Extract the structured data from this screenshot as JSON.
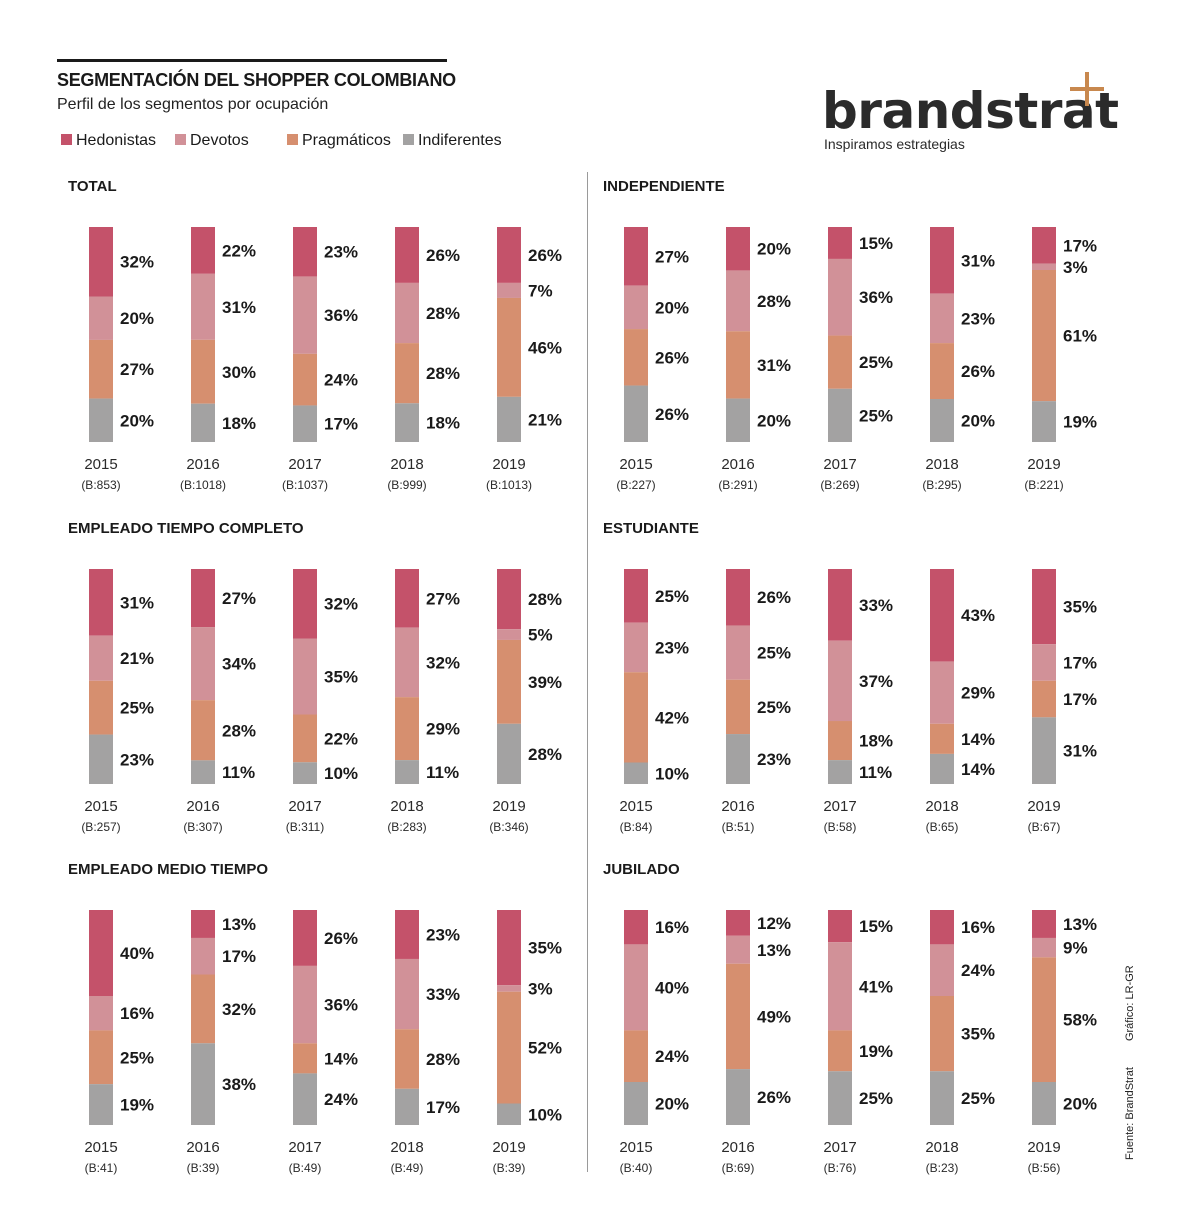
{
  "header": {
    "title": "SEGMENTACIÓN DEL SHOPPER COLOMBIANO",
    "subtitle": "Perfil de los segmentos por ocupación"
  },
  "legend": [
    {
      "label": "Hedonistas",
      "color": "#c4526a"
    },
    {
      "label": "Devotos",
      "color": "#d19198"
    },
    {
      "label": "Pragmáticos",
      "color": "#d68f6f"
    },
    {
      "label": "Indiferentes",
      "color": "#a3a2a2"
    }
  ],
  "logo": {
    "name": "brandstrat",
    "tagline": "Inspiramos estrategias",
    "accent": "#c8884e"
  },
  "credits": {
    "source": "Fuente: BrandStrat",
    "graphic": "Gráfico: LR-GR"
  },
  "chart_data": [
    {
      "type": "bar",
      "stacked": true,
      "title": "TOTAL",
      "categories": [
        "2015",
        "2016",
        "2017",
        "2018",
        "2019"
      ],
      "bases": [
        "(B:853)",
        "(B:1018)",
        "(B:1037)",
        "(B:999)",
        "(B:1013)"
      ],
      "series": [
        {
          "name": "Hedonistas",
          "values": [
            32,
            22,
            23,
            26,
            26
          ]
        },
        {
          "name": "Devotos",
          "values": [
            20,
            31,
            36,
            28,
            7
          ]
        },
        {
          "name": "Pragmáticos",
          "values": [
            27,
            30,
            24,
            28,
            46
          ]
        },
        {
          "name": "Indiferentes",
          "values": [
            20,
            18,
            17,
            18,
            21
          ]
        }
      ]
    },
    {
      "type": "bar",
      "stacked": true,
      "title": "INDEPENDIENTE",
      "categories": [
        "2015",
        "2016",
        "2017",
        "2018",
        "2019"
      ],
      "bases": [
        "(B:227)",
        "(B:291)",
        "(B:269)",
        "(B:295)",
        "(B:221)"
      ],
      "series": [
        {
          "name": "Hedonistas",
          "values": [
            27,
            20,
            15,
            31,
            17
          ]
        },
        {
          "name": "Devotos",
          "values": [
            20,
            28,
            36,
            23,
            3
          ]
        },
        {
          "name": "Pragmáticos",
          "values": [
            26,
            31,
            25,
            26,
            61
          ]
        },
        {
          "name": "Indiferentes",
          "values": [
            26,
            20,
            25,
            20,
            19
          ]
        }
      ]
    },
    {
      "type": "bar",
      "stacked": true,
      "title": "EMPLEADO TIEMPO COMPLETO",
      "categories": [
        "2015",
        "2016",
        "2017",
        "2018",
        "2019"
      ],
      "bases": [
        "(B:257)",
        "(B:307)",
        "(B:311)",
        "(B:283)",
        "(B:346)"
      ],
      "series": [
        {
          "name": "Hedonistas",
          "values": [
            31,
            27,
            32,
            27,
            28
          ]
        },
        {
          "name": "Devotos",
          "values": [
            21,
            34,
            35,
            32,
            5
          ]
        },
        {
          "name": "Pragmáticos",
          "values": [
            25,
            28,
            22,
            29,
            39
          ]
        },
        {
          "name": "Indiferentes",
          "values": [
            23,
            11,
            10,
            11,
            28
          ]
        }
      ]
    },
    {
      "type": "bar",
      "stacked": true,
      "title": "ESTUDIANTE",
      "categories": [
        "2015",
        "2016",
        "2017",
        "2018",
        "2019"
      ],
      "bases": [
        "(B:84)",
        "(B:51)",
        "(B:58)",
        "(B:65)",
        "(B:67)"
      ],
      "series": [
        {
          "name": "Hedonistas",
          "values": [
            25,
            26,
            33,
            43,
            35
          ]
        },
        {
          "name": "Devotos",
          "values": [
            23,
            25,
            37,
            29,
            17
          ]
        },
        {
          "name": "Pragmáticos",
          "values": [
            42,
            25,
            18,
            14,
            17
          ]
        },
        {
          "name": "Indiferentes",
          "values": [
            10,
            23,
            11,
            14,
            31
          ]
        }
      ]
    },
    {
      "type": "bar",
      "stacked": true,
      "title": "EMPLEADO MEDIO TIEMPO",
      "categories": [
        "2015",
        "2016",
        "2017",
        "2018",
        "2019"
      ],
      "bases": [
        "(B:41)",
        "(B:39)",
        "(B:49)",
        "(B:49)",
        "(B:39)"
      ],
      "series": [
        {
          "name": "Hedonistas",
          "values": [
            40,
            13,
            26,
            23,
            35
          ]
        },
        {
          "name": "Devotos",
          "values": [
            16,
            17,
            36,
            33,
            3
          ]
        },
        {
          "name": "Pragmáticos",
          "values": [
            25,
            32,
            14,
            28,
            52
          ]
        },
        {
          "name": "Indiferentes",
          "values": [
            19,
            38,
            24,
            17,
            10
          ]
        }
      ]
    },
    {
      "type": "bar",
      "stacked": true,
      "title": "JUBILADO",
      "categories": [
        "2015",
        "2016",
        "2017",
        "2018",
        "2019"
      ],
      "bases": [
        "(B:40)",
        "(B:69)",
        "(B:76)",
        "(B:23)",
        "(B:56)"
      ],
      "series": [
        {
          "name": "Hedonistas",
          "values": [
            16,
            12,
            15,
            16,
            13
          ]
        },
        {
          "name": "Devotos",
          "values": [
            40,
            13,
            41,
            24,
            9
          ]
        },
        {
          "name": "Pragmáticos",
          "values": [
            24,
            49,
            19,
            35,
            58
          ]
        },
        {
          "name": "Indiferentes",
          "values": [
            20,
            26,
            25,
            25,
            20
          ]
        }
      ]
    }
  ]
}
